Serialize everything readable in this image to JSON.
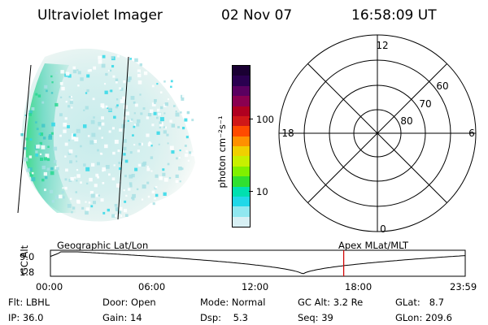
{
  "header": {
    "instrument": "Ultraviolet Imager",
    "date": "02 Nov 07",
    "time": "16:58:09 UT"
  },
  "colorbar": {
    "label": "photon cm⁻²s⁻¹",
    "ticks": [
      "100",
      "10"
    ],
    "colors": [
      "#1a0033",
      "#2a0050",
      "#5a0060",
      "#8a0050",
      "#b00020",
      "#d01818",
      "#ff4a00",
      "#ff9000",
      "#f0d000",
      "#c8f000",
      "#80f000",
      "#30e030",
      "#00e0b0",
      "#20d8e8",
      "#90e8f0",
      "#d8f0f4"
    ]
  },
  "polar_plot": {
    "top_label": "12",
    "bottom_label": "0",
    "left_label": "18",
    "right_label": "6",
    "lat_labels": [
      "60",
      "70",
      "80"
    ]
  },
  "timeline": {
    "left_title": "Geographic Lat/Lon",
    "right_title": "Apex MLat/MLT",
    "axis_label": "GC Alt",
    "y_ticks": [
      "9.0",
      "1.8"
    ],
    "x_ticks": [
      "00:00",
      "06:00",
      "12:00",
      "18:00",
      "23:59"
    ],
    "current_time_hours": 16.97,
    "marker_color": "#d00000"
  },
  "status": {
    "flt_label": "Flt:",
    "flt_value": "LBHL",
    "ip_label": "IP:",
    "ip_value": "36.0",
    "door_label": "Door:",
    "door_value": "Open",
    "gain_label": "Gain:",
    "gain_value": "14",
    "mode_label": "Mode:",
    "mode_value": "Normal",
    "dsp_label": "Dsp:",
    "dsp_value": "5.3",
    "gcalt_label": "GC Alt:",
    "gcalt_value": "3.2 Re",
    "seq_label": "Seq:",
    "seq_value": "39",
    "glat_label": "GLat:",
    "glat_value": "8.7",
    "glon_label": "GLon:",
    "glon_value": "209.6"
  }
}
